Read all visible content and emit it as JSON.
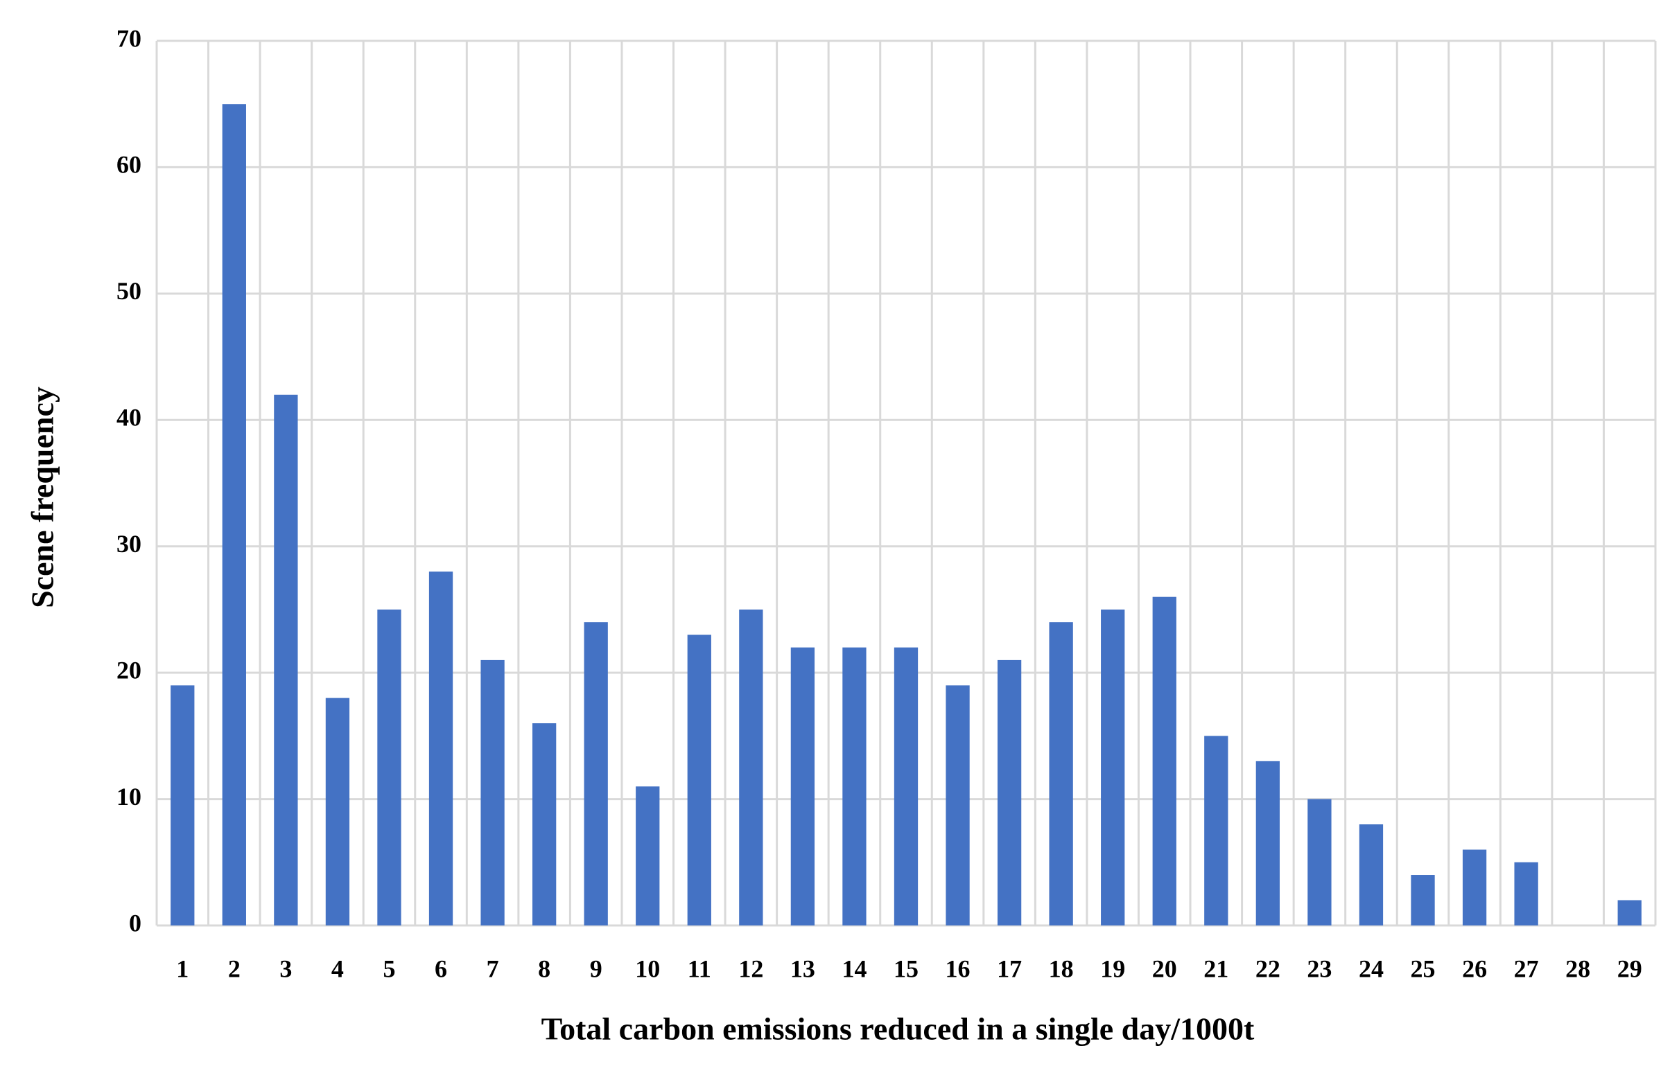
{
  "chart_data": {
    "type": "bar",
    "x_label": "Total carbon emissions reduced in a single day/1000t",
    "y_label": "Scene frequency",
    "categories": [
      "1",
      "2",
      "3",
      "4",
      "5",
      "6",
      "7",
      "8",
      "9",
      "10",
      "11",
      "12",
      "13",
      "14",
      "15",
      "16",
      "17",
      "18",
      "19",
      "20",
      "21",
      "22",
      "23",
      "24",
      "25",
      "26",
      "27",
      "28",
      "29"
    ],
    "values": [
      19,
      65,
      42,
      18,
      25,
      28,
      21,
      16,
      24,
      11,
      23,
      25,
      22,
      22,
      22,
      19,
      21,
      24,
      25,
      26,
      15,
      13,
      10,
      8,
      4,
      6,
      5,
      0,
      2
    ],
    "color": "#4472c4",
    "ylim": [
      0,
      70
    ],
    "yticks": [
      0,
      10,
      20,
      30,
      40,
      50,
      60,
      70
    ],
    "grid": true
  }
}
